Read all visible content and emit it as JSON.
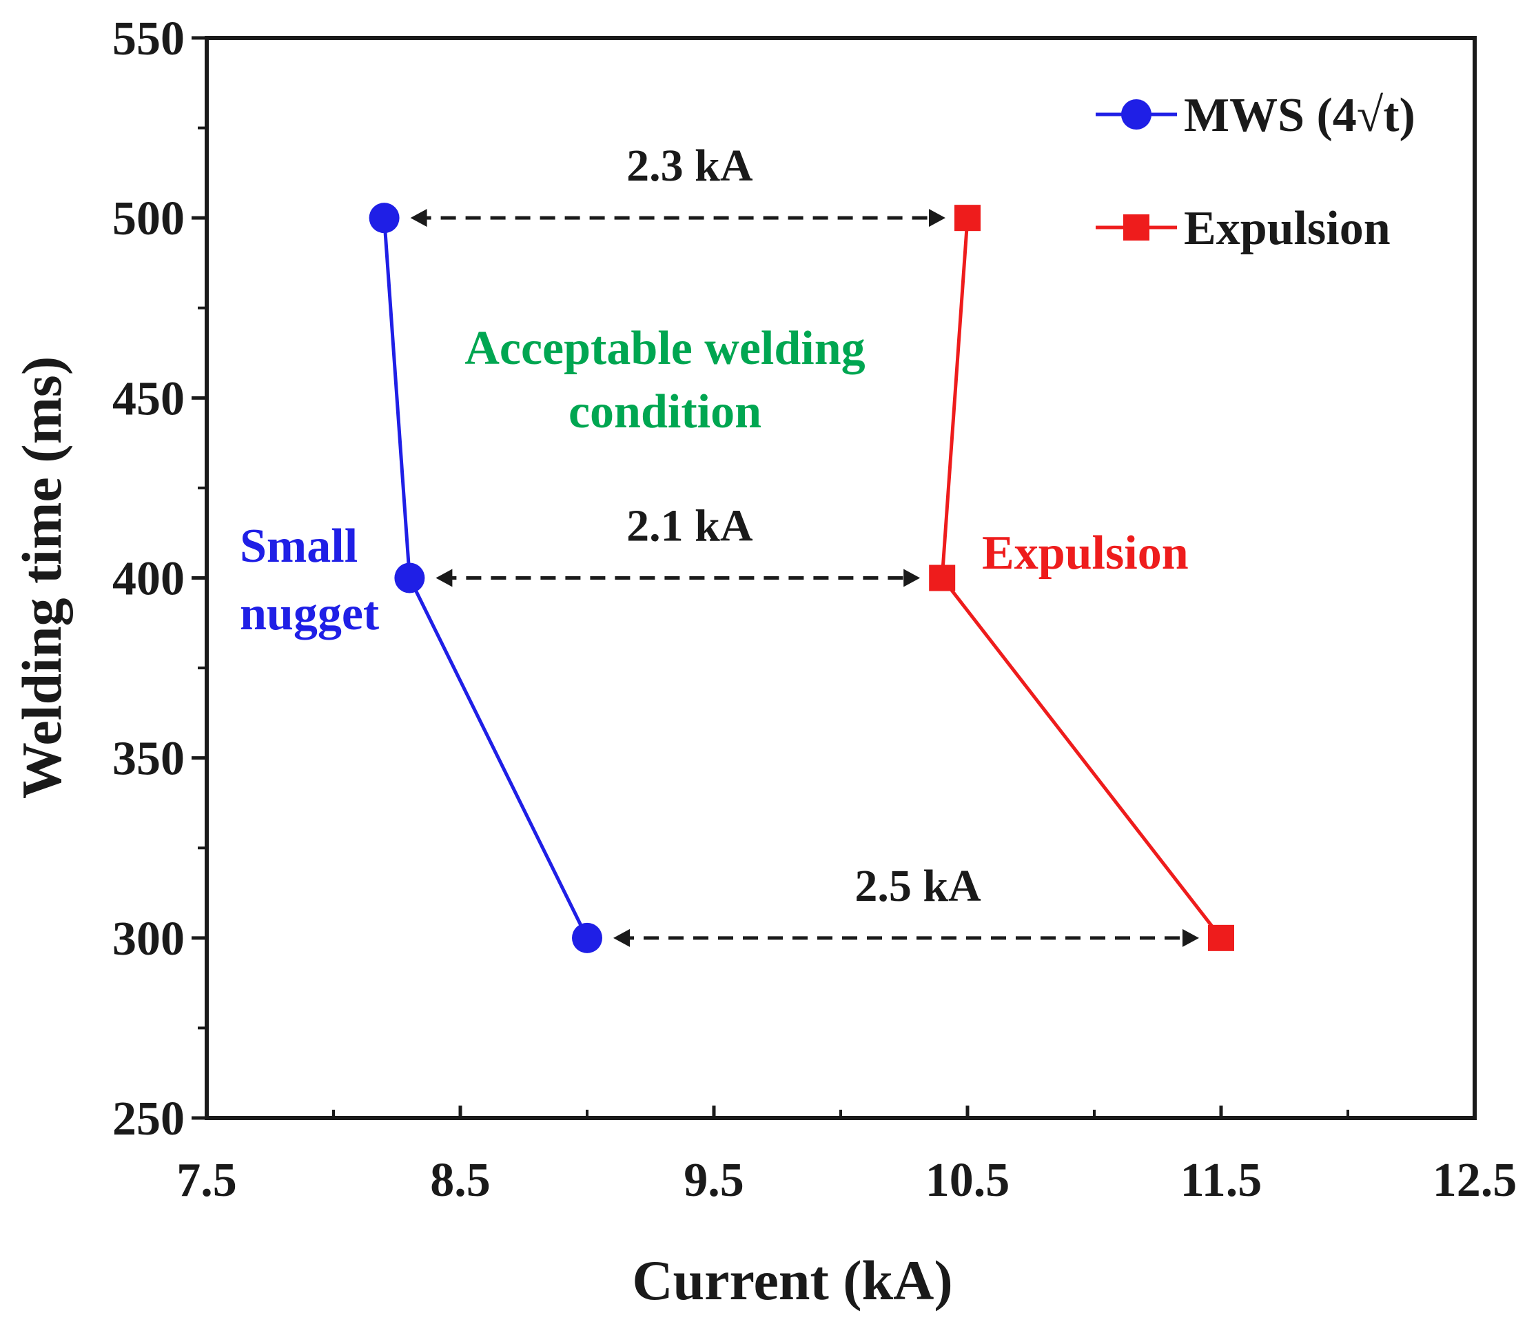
{
  "chart_data": {
    "type": "line",
    "xlabel": "Current (kA)",
    "ylabel": "Welding time (ms)",
    "xlim": [
      7.5,
      12.5
    ],
    "ylim": [
      250,
      550
    ],
    "x_ticks": [
      7.5,
      8.5,
      9.5,
      10.5,
      11.5,
      12.5
    ],
    "x_tick_labels": [
      "7.5",
      "8.5",
      "9.5",
      "10.5",
      "11.5",
      "12.5"
    ],
    "x_minor_ticks": [
      8.0,
      9.0,
      10.0,
      11.0,
      12.0
    ],
    "y_ticks": [
      250,
      300,
      350,
      400,
      450,
      500,
      550
    ],
    "y_tick_labels": [
      "250",
      "300",
      "350",
      "400",
      "450",
      "500",
      "550"
    ],
    "y_minor_ticks": [
      275,
      325,
      375,
      425,
      475,
      525
    ],
    "grid": false,
    "legend_position": "top-right",
    "series": [
      {
        "name": "MWS (4√t)",
        "color": "#1f1fe6",
        "marker": "circle",
        "points": [
          {
            "x": 9.0,
            "y": 300
          },
          {
            "x": 8.3,
            "y": 400
          },
          {
            "x": 8.2,
            "y": 500
          }
        ]
      },
      {
        "name": "Expulsion",
        "color": "#ee1c1c",
        "marker": "square",
        "points": [
          {
            "x": 11.5,
            "y": 300
          },
          {
            "x": 10.4,
            "y": 400
          },
          {
            "x": 10.5,
            "y": 500
          }
        ]
      }
    ],
    "gap_annotations": [
      {
        "label": "2.3 kA",
        "y": 500,
        "x_from": 8.2,
        "x_to": 10.5
      },
      {
        "label": "2.1 kA",
        "y": 400,
        "x_from": 8.3,
        "x_to": 10.4
      },
      {
        "label": "2.5 kA",
        "y": 300,
        "x_from": 9.0,
        "x_to": 11.5
      }
    ],
    "region_labels": [
      {
        "lines": [
          "Acceptable welding",
          "condition"
        ],
        "color": "#00a651"
      },
      {
        "lines": [
          "Small",
          "nugget"
        ],
        "color": "#1f1fe6"
      },
      {
        "lines": [
          "Expulsion"
        ],
        "color": "#ee1c1c"
      }
    ]
  }
}
